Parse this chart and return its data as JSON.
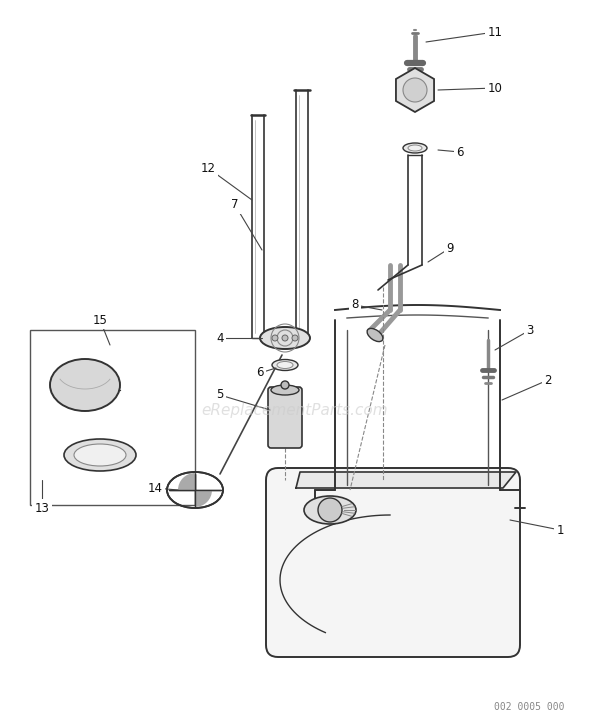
{
  "bg_color": "#ffffff",
  "line_color": "#333333",
  "label_color": "#111111",
  "watermark_text": "eReplacementParts.com",
  "part_code": "002 0005 000",
  "figsize": [
    5.9,
    7.23
  ],
  "dpi": 100
}
